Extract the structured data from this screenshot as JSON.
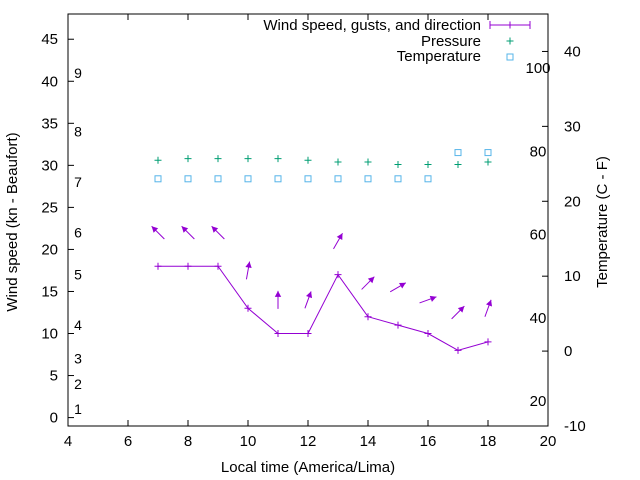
{
  "chart_data": {
    "type": "line",
    "title": "",
    "xlabel": "Local time (America/Lima)",
    "ylabel": "Wind speed (kn - Beaufort)",
    "y2label": "Temperature (C - F)",
    "xlim": [
      4,
      20
    ],
    "ylim": [
      -1,
      48
    ],
    "y2lim": [
      -10,
      45
    ],
    "x_ticks": [
      4,
      6,
      8,
      10,
      12,
      14,
      16,
      18,
      20
    ],
    "y_ticks": [
      0,
      5,
      10,
      15,
      20,
      25,
      30,
      35,
      40,
      45
    ],
    "y2_ticks": [
      -10,
      0,
      10,
      20,
      30,
      40
    ],
    "fahrenheit_ticks": [
      {
        "label": "20",
        "celsius": -6.67
      },
      {
        "label": "40",
        "celsius": 4.44
      },
      {
        "label": "60",
        "celsius": 15.56
      },
      {
        "label": "80",
        "celsius": 26.67
      },
      {
        "label": "100",
        "celsius": 37.78
      }
    ],
    "beaufort_ticks": [
      {
        "label": "1",
        "knots": 1
      },
      {
        "label": "2",
        "knots": 4
      },
      {
        "label": "3",
        "knots": 7
      },
      {
        "label": "4",
        "knots": 11
      },
      {
        "label": "5",
        "knots": 17
      },
      {
        "label": "6",
        "knots": 22
      },
      {
        "label": "7",
        "knots": 28
      },
      {
        "label": "8",
        "knots": 34
      },
      {
        "label": "9",
        "knots": 41
      }
    ],
    "legend": [
      "Wind speed, gusts, and direction",
      "Pressure",
      "Temperature"
    ],
    "legend_position": "top-right",
    "series": [
      {
        "name": "Wind speed, gusts, and direction",
        "color": "#9400d3",
        "x": [
          7,
          8,
          9,
          10,
          11,
          12,
          13,
          14,
          15,
          16,
          17,
          18
        ],
        "values": [
          18,
          18,
          18,
          13,
          10,
          10,
          17,
          12,
          11,
          10,
          8,
          9
        ]
      },
      {
        "name": "Wind direction arrows",
        "color": "#9400d3",
        "x": [
          7,
          8,
          9,
          10,
          11,
          12,
          13,
          14,
          15,
          16,
          17,
          18
        ],
        "values": [
          22,
          22,
          22,
          17.5,
          14,
          14,
          21,
          16,
          15.5,
          14,
          12.5,
          13
        ],
        "directions_deg": [
          315,
          315,
          315,
          10,
          0,
          20,
          30,
          45,
          60,
          70,
          45,
          20
        ]
      },
      {
        "name": "Pressure",
        "color": "#009e73",
        "x": [
          7,
          8,
          9,
          10,
          11,
          12,
          13,
          14,
          15,
          16,
          17,
          18
        ],
        "values": [
          30.6,
          30.8,
          30.8,
          30.8,
          30.8,
          30.6,
          30.4,
          30.4,
          30.1,
          30.1,
          30.1,
          30.4
        ]
      },
      {
        "name": "Temperature",
        "color": "#56b4e9",
        "x": [
          7,
          8,
          9,
          10,
          11,
          12,
          13,
          14,
          15,
          16,
          17,
          18
        ],
        "values": [
          23,
          23,
          23,
          23,
          23,
          23,
          23,
          23,
          23,
          23,
          26.5,
          26.5
        ]
      }
    ]
  }
}
